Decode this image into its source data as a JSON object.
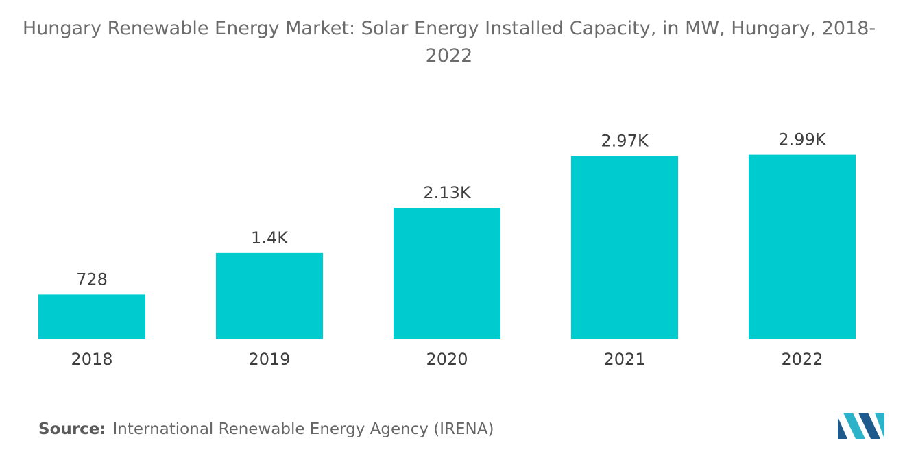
{
  "chart_data": {
    "type": "bar",
    "title": "Hungary Renewable Energy Market: Solar Energy Installed Capacity, in MW, Hungary, 2018-2022",
    "categories": [
      "2018",
      "2019",
      "2020",
      "2021",
      "2022"
    ],
    "values": [
      728,
      1400,
      2130,
      2970,
      2990
    ],
    "data_labels": [
      "728",
      "1.4K",
      "2.13K",
      "2.97K",
      "2.99K"
    ],
    "xlabel": "",
    "ylabel": "",
    "ylim": [
      0,
      3400
    ],
    "grid": false,
    "legend": "none"
  },
  "colors": {
    "bar": "#00cccf",
    "logo_dark": "#1f5a8c",
    "logo_light": "#2bb3c9"
  },
  "source": {
    "label": "Source:",
    "text": "International Renewable Energy Agency (IRENA)"
  },
  "logo": {
    "icon": "mordor-intelligence-logo-icon"
  }
}
